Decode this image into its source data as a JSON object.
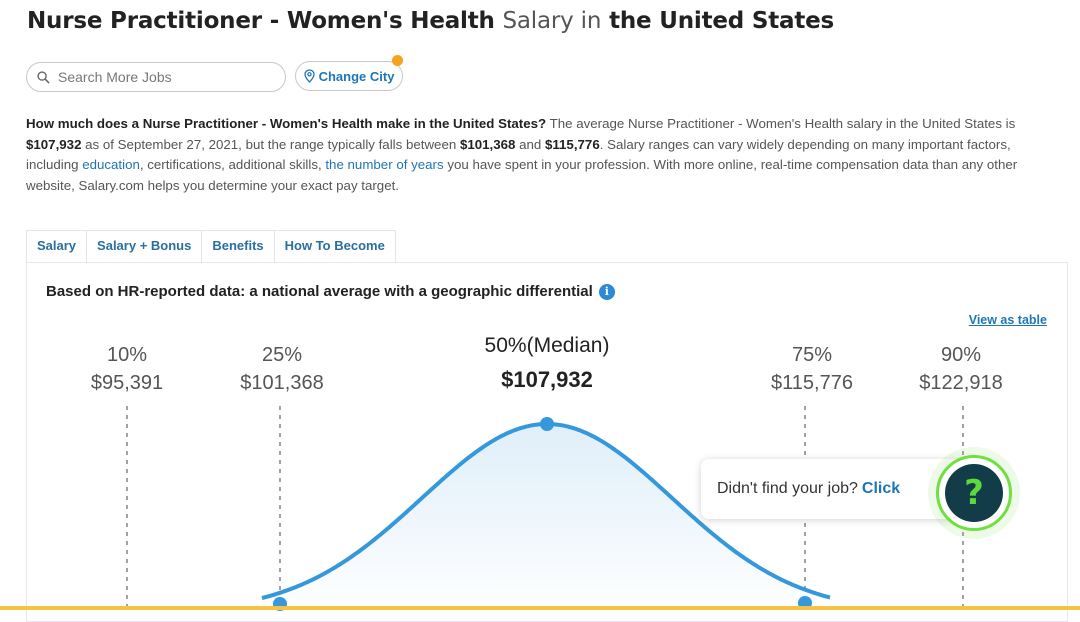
{
  "header": {
    "title_job": "Nurse Practitioner - Women's Health",
    "title_salary_in": "Salary in",
    "title_location": "the United States"
  },
  "search": {
    "placeholder": "Search More Jobs"
  },
  "change_city": {
    "label": "Change City"
  },
  "description": {
    "question": "How much does a Nurse Practitioner - Women's Health make in the United States?",
    "t1": " The average Nurse Practitioner - Women's Health salary in the United States is ",
    "average": "$107,932",
    "t2": " as of September 27, 2021, but the range typically falls between ",
    "low": "$101,368",
    "t3": " and ",
    "high": "$115,776",
    "t4": ". Salary ranges can vary widely depending on many important factors, including ",
    "link_education": "education",
    "t5": ", certifications, additional skills, ",
    "link_years": "the number of years",
    "t6": " you have spent in your profession. With more online, real-time compensation data than any other website, Salary.com helps you determine your exact pay target."
  },
  "tabs": [
    {
      "label": "Salary"
    },
    {
      "label": "Salary + Bonus"
    },
    {
      "label": "Benefits"
    },
    {
      "label": "How To Become"
    }
  ],
  "panel": {
    "heading": "Based on HR-reported data: a national average with a geographic differential",
    "info_icon": "i",
    "view_table": "View as table"
  },
  "percentiles": [
    {
      "label": "10%",
      "value": "$95,391"
    },
    {
      "label": "25%",
      "value": "$101,368"
    },
    {
      "label": "50%(Median)",
      "value": "$107,932"
    },
    {
      "label": "75%",
      "value": "$115,776"
    },
    {
      "label": "90%",
      "value": "$122,918"
    }
  ],
  "chart_data": {
    "type": "area",
    "description_type": "salary distribution bell curve",
    "x": [
      95391,
      101368,
      107932,
      115776,
      122918
    ],
    "labels": [
      "10%",
      "25%",
      "50%(Median)",
      "75%",
      "90%"
    ],
    "title": "",
    "xlabel": "",
    "ylabel": ""
  },
  "help": {
    "text": "Didn't find your job?",
    "click": "Click",
    "icon_glyph": "?"
  },
  "colors": {
    "link": "#1f76b5",
    "curve": "#3598db",
    "accent_orange": "#f7a21b",
    "help_green": "#5fd83a",
    "bottom_bar": "#f5c242"
  }
}
